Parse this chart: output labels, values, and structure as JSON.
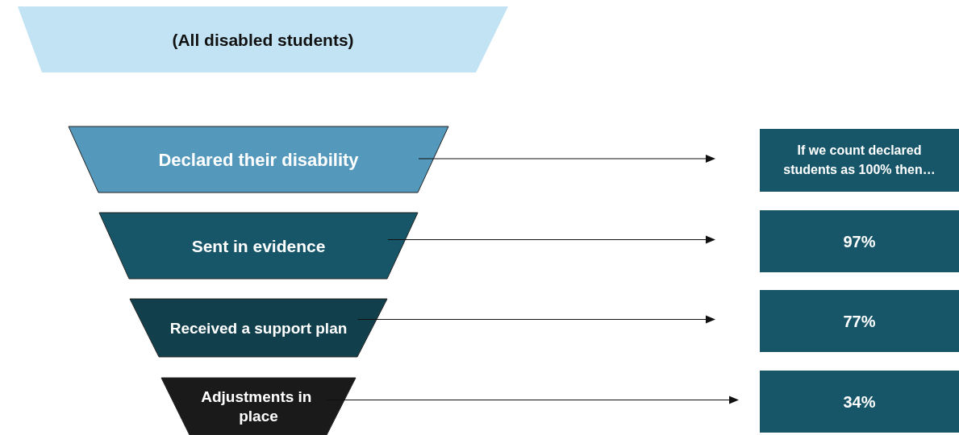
{
  "chart_data": {
    "type": "other",
    "categories": [
      "(All disabled students)",
      "Declared their disability",
      "Sent in evidence",
      "Received a support plan",
      "Adjustments in place"
    ],
    "values": [
      null,
      null,
      97,
      77,
      34
    ],
    "value_labels": [
      null,
      null,
      "97%",
      "77%",
      "34%"
    ],
    "annotations": [
      "If we count declared students as 100% then…"
    ]
  }
}
